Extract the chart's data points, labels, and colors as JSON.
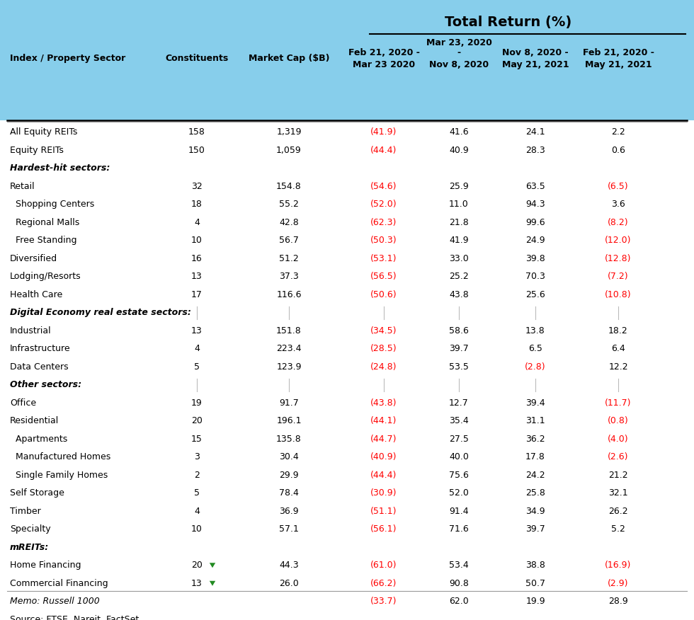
{
  "title": "Total Return (%)",
  "header_bg": "#87CEEB",
  "rows": [
    {
      "label": "All Equity REITs",
      "indent": 0,
      "bold": false,
      "italic": false,
      "constituents": "158",
      "mktcap": "1,319",
      "c1": "(41.9)",
      "c1_red": true,
      "c2": "41.6",
      "c2_red": false,
      "c3": "24.1",
      "c3_red": false,
      "c4": "2.2",
      "c4_red": false,
      "separator_above": true,
      "green_arrow": false
    },
    {
      "label": "Equity REITs",
      "indent": 0,
      "bold": false,
      "italic": false,
      "constituents": "150",
      "mktcap": "1,059",
      "c1": "(44.4)",
      "c1_red": true,
      "c2": "40.9",
      "c2_red": false,
      "c3": "28.3",
      "c3_red": false,
      "c4": "0.6",
      "c4_red": false,
      "separator_above": false,
      "green_arrow": false
    },
    {
      "label": "Hardest-hit sectors:",
      "indent": 0,
      "bold": true,
      "italic": true,
      "constituents": "",
      "mktcap": "",
      "c1": "",
      "c1_red": false,
      "c2": "",
      "c2_red": false,
      "c3": "",
      "c3_red": false,
      "c4": "",
      "c4_red": false,
      "separator_above": false,
      "green_arrow": false
    },
    {
      "label": "Retail",
      "indent": 0,
      "bold": false,
      "italic": false,
      "constituents": "32",
      "mktcap": "154.8",
      "c1": "(54.6)",
      "c1_red": true,
      "c2": "25.9",
      "c2_red": false,
      "c3": "63.5",
      "c3_red": false,
      "c4": "(6.5)",
      "c4_red": true,
      "separator_above": false,
      "green_arrow": false
    },
    {
      "label": "  Shopping Centers",
      "indent": 0,
      "bold": false,
      "italic": false,
      "constituents": "18",
      "mktcap": "55.2",
      "c1": "(52.0)",
      "c1_red": true,
      "c2": "11.0",
      "c2_red": false,
      "c3": "94.3",
      "c3_red": false,
      "c4": "3.6",
      "c4_red": false,
      "separator_above": false,
      "green_arrow": false
    },
    {
      "label": "  Regional Malls",
      "indent": 0,
      "bold": false,
      "italic": false,
      "constituents": "4",
      "mktcap": "42.8",
      "c1": "(62.3)",
      "c1_red": true,
      "c2": "21.8",
      "c2_red": false,
      "c3": "99.6",
      "c3_red": false,
      "c4": "(8.2)",
      "c4_red": true,
      "separator_above": false,
      "green_arrow": false
    },
    {
      "label": "  Free Standing",
      "indent": 0,
      "bold": false,
      "italic": false,
      "constituents": "10",
      "mktcap": "56.7",
      "c1": "(50.3)",
      "c1_red": true,
      "c2": "41.9",
      "c2_red": false,
      "c3": "24.9",
      "c3_red": false,
      "c4": "(12.0)",
      "c4_red": true,
      "separator_above": false,
      "green_arrow": false
    },
    {
      "label": "Diversified",
      "indent": 0,
      "bold": false,
      "italic": false,
      "constituents": "16",
      "mktcap": "51.2",
      "c1": "(53.1)",
      "c1_red": true,
      "c2": "33.0",
      "c2_red": false,
      "c3": "39.8",
      "c3_red": false,
      "c4": "(12.8)",
      "c4_red": true,
      "separator_above": false,
      "green_arrow": false
    },
    {
      "label": "Lodging/Resorts",
      "indent": 0,
      "bold": false,
      "italic": false,
      "constituents": "13",
      "mktcap": "37.3",
      "c1": "(56.5)",
      "c1_red": true,
      "c2": "25.2",
      "c2_red": false,
      "c3": "70.3",
      "c3_red": false,
      "c4": "(7.2)",
      "c4_red": true,
      "separator_above": false,
      "green_arrow": false
    },
    {
      "label": "Health Care",
      "indent": 0,
      "bold": false,
      "italic": false,
      "constituents": "17",
      "mktcap": "116.6",
      "c1": "(50.6)",
      "c1_red": true,
      "c2": "43.8",
      "c2_red": false,
      "c3": "25.6",
      "c3_red": false,
      "c4": "(10.8)",
      "c4_red": true,
      "separator_above": false,
      "green_arrow": false
    },
    {
      "label": "Digital Economy real estate sectors:",
      "indent": 0,
      "bold": true,
      "italic": true,
      "constituents": "",
      "mktcap": "",
      "c1": "",
      "c1_red": false,
      "c2": "",
      "c2_red": false,
      "c3": "",
      "c3_red": false,
      "c4": "",
      "c4_red": false,
      "separator_above": false,
      "green_arrow": false,
      "dividers": true
    },
    {
      "label": "Industrial",
      "indent": 0,
      "bold": false,
      "italic": false,
      "constituents": "13",
      "mktcap": "151.8",
      "c1": "(34.5)",
      "c1_red": true,
      "c2": "58.6",
      "c2_red": false,
      "c3": "13.8",
      "c3_red": false,
      "c4": "18.2",
      "c4_red": false,
      "separator_above": false,
      "green_arrow": false
    },
    {
      "label": "Infrastructure",
      "indent": 0,
      "bold": false,
      "italic": false,
      "constituents": "4",
      "mktcap": "223.4",
      "c1": "(28.5)",
      "c1_red": true,
      "c2": "39.7",
      "c2_red": false,
      "c3": "6.5",
      "c3_red": false,
      "c4": "6.4",
      "c4_red": false,
      "separator_above": false,
      "green_arrow": false
    },
    {
      "label": "Data Centers",
      "indent": 0,
      "bold": false,
      "italic": false,
      "constituents": "5",
      "mktcap": "123.9",
      "c1": "(24.8)",
      "c1_red": true,
      "c2": "53.5",
      "c2_red": false,
      "c3": "(2.8)",
      "c3_red": true,
      "c4": "12.2",
      "c4_red": false,
      "separator_above": false,
      "green_arrow": false
    },
    {
      "label": "Other sectors:",
      "indent": 0,
      "bold": true,
      "italic": true,
      "constituents": "",
      "mktcap": "",
      "c1": "",
      "c1_red": false,
      "c2": "",
      "c2_red": false,
      "c3": "",
      "c3_red": false,
      "c4": "",
      "c4_red": false,
      "separator_above": false,
      "green_arrow": false,
      "dividers": true
    },
    {
      "label": "Office",
      "indent": 0,
      "bold": false,
      "italic": false,
      "constituents": "19",
      "mktcap": "91.7",
      "c1": "(43.8)",
      "c1_red": true,
      "c2": "12.7",
      "c2_red": false,
      "c3": "39.4",
      "c3_red": false,
      "c4": "(11.7)",
      "c4_red": true,
      "separator_above": false,
      "green_arrow": false
    },
    {
      "label": "Residential",
      "indent": 0,
      "bold": false,
      "italic": false,
      "constituents": "20",
      "mktcap": "196.1",
      "c1": "(44.1)",
      "c1_red": true,
      "c2": "35.4",
      "c2_red": false,
      "c3": "31.1",
      "c3_red": false,
      "c4": "(0.8)",
      "c4_red": true,
      "separator_above": false,
      "green_arrow": false
    },
    {
      "label": "  Apartments",
      "indent": 0,
      "bold": false,
      "italic": false,
      "constituents": "15",
      "mktcap": "135.8",
      "c1": "(44.7)",
      "c1_red": true,
      "c2": "27.5",
      "c2_red": false,
      "c3": "36.2",
      "c3_red": false,
      "c4": "(4.0)",
      "c4_red": true,
      "separator_above": false,
      "green_arrow": false
    },
    {
      "label": "  Manufactured Homes",
      "indent": 0,
      "bold": false,
      "italic": false,
      "constituents": "3",
      "mktcap": "30.4",
      "c1": "(40.9)",
      "c1_red": true,
      "c2": "40.0",
      "c2_red": false,
      "c3": "17.8",
      "c3_red": false,
      "c4": "(2.6)",
      "c4_red": true,
      "separator_above": false,
      "green_arrow": false
    },
    {
      "label": "  Single Family Homes",
      "indent": 0,
      "bold": false,
      "italic": false,
      "constituents": "2",
      "mktcap": "29.9",
      "c1": "(44.4)",
      "c1_red": true,
      "c2": "75.6",
      "c2_red": false,
      "c3": "24.2",
      "c3_red": false,
      "c4": "21.2",
      "c4_red": false,
      "separator_above": false,
      "green_arrow": false
    },
    {
      "label": "Self Storage",
      "indent": 0,
      "bold": false,
      "italic": false,
      "constituents": "5",
      "mktcap": "78.4",
      "c1": "(30.9)",
      "c1_red": true,
      "c2": "52.0",
      "c2_red": false,
      "c3": "25.8",
      "c3_red": false,
      "c4": "32.1",
      "c4_red": false,
      "separator_above": false,
      "green_arrow": false
    },
    {
      "label": "Timber",
      "indent": 0,
      "bold": false,
      "italic": false,
      "constituents": "4",
      "mktcap": "36.9",
      "c1": "(51.1)",
      "c1_red": true,
      "c2": "91.4",
      "c2_red": false,
      "c3": "34.9",
      "c3_red": false,
      "c4": "26.2",
      "c4_red": false,
      "separator_above": false,
      "green_arrow": false
    },
    {
      "label": "Specialty",
      "indent": 0,
      "bold": false,
      "italic": false,
      "constituents": "10",
      "mktcap": "57.1",
      "c1": "(56.1)",
      "c1_red": true,
      "c2": "71.6",
      "c2_red": false,
      "c3": "39.7",
      "c3_red": false,
      "c4": "5.2",
      "c4_red": false,
      "separator_above": false,
      "green_arrow": false
    },
    {
      "label": "mREITs:",
      "indent": 0,
      "bold": true,
      "italic": true,
      "constituents": "",
      "mktcap": "",
      "c1": "",
      "c1_red": false,
      "c2": "",
      "c2_red": false,
      "c3": "",
      "c3_red": false,
      "c4": "",
      "c4_red": false,
      "separator_above": false,
      "green_arrow": false
    },
    {
      "label": "Home Financing",
      "indent": 0,
      "bold": false,
      "italic": false,
      "constituents": "20",
      "mktcap": "44.3",
      "c1": "(61.0)",
      "c1_red": true,
      "c2": "53.4",
      "c2_red": false,
      "c3": "38.8",
      "c3_red": false,
      "c4": "(16.9)",
      "c4_red": true,
      "separator_above": false,
      "green_arrow": true
    },
    {
      "label": "Commercial Financing",
      "indent": 0,
      "bold": false,
      "italic": false,
      "constituents": "13",
      "mktcap": "26.0",
      "c1": "(66.2)",
      "c1_red": true,
      "c2": "90.8",
      "c2_red": false,
      "c3": "50.7",
      "c3_red": false,
      "c4": "(2.9)",
      "c4_red": true,
      "separator_above": false,
      "green_arrow": true
    },
    {
      "label": "Memo: Russell 1000",
      "indent": 0,
      "bold": false,
      "italic": true,
      "constituents": "",
      "mktcap": "",
      "c1": "(33.7)",
      "c1_red": true,
      "c2": "62.0",
      "c2_red": false,
      "c3": "19.9",
      "c3_red": false,
      "c4": "28.9",
      "c4_red": false,
      "separator_above": true,
      "green_arrow": false
    },
    {
      "label": "Source: FTSE, Nareit, FactSet.",
      "indent": 0,
      "bold": false,
      "italic": false,
      "constituents": "",
      "mktcap": "",
      "c1": "",
      "c1_red": false,
      "c2": "",
      "c2_red": false,
      "c3": "",
      "c3_red": false,
      "c4": "",
      "c4_red": false,
      "separator_above": false,
      "green_arrow": false
    }
  ]
}
